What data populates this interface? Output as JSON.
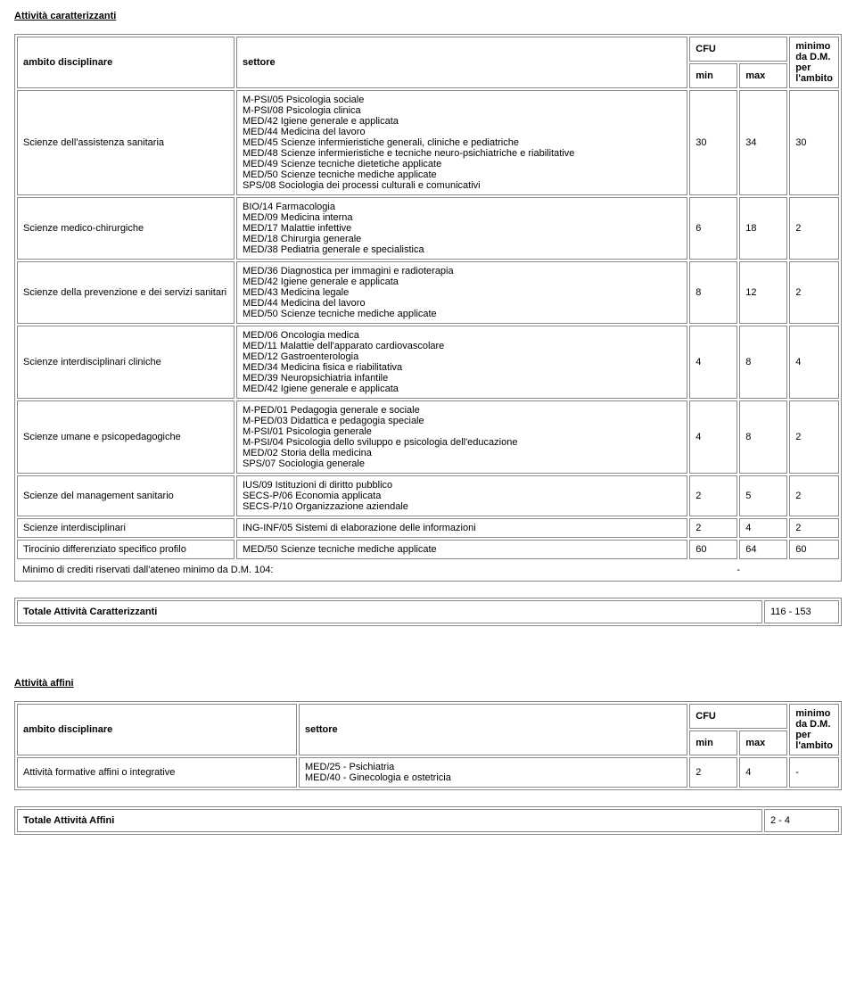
{
  "sections": {
    "caratterizzanti": {
      "title": "Attività caratterizzanti",
      "headers": {
        "ambito": "ambito disciplinare",
        "settore": "settore",
        "cfu": "CFU",
        "min": "min",
        "max": "max",
        "minimo": "minimo da D.M. per l'ambito"
      },
      "rows": [
        {
          "ambito": "Scienze dell'assistenza sanitaria",
          "settore": "M-PSI/05 Psicologia sociale\nM-PSI/08 Psicologia clinica\nMED/42 Igiene generale e applicata\nMED/44 Medicina del lavoro\nMED/45 Scienze infermieristiche generali, cliniche e pediatriche\nMED/48 Scienze infermieristiche e tecniche neuro-psichiatriche e riabilitative\nMED/49 Scienze tecniche dietetiche applicate\nMED/50 Scienze tecniche mediche applicate\nSPS/08 Sociologia dei processi culturali e comunicativi",
          "min": "30",
          "max": "34",
          "dm": "30"
        },
        {
          "ambito": "Scienze medico-chirurgiche",
          "settore": "BIO/14 Farmacologia\nMED/09 Medicina interna\nMED/17 Malattie infettive\nMED/18 Chirurgia generale\nMED/38 Pediatria generale e specialistica",
          "min": "6",
          "max": "18",
          "dm": "2"
        },
        {
          "ambito": "Scienze della prevenzione e dei servizi sanitari",
          "settore": "MED/36 Diagnostica per immagini e radioterapia\nMED/42 Igiene generale e applicata\nMED/43 Medicina legale\nMED/44 Medicina del lavoro\nMED/50 Scienze tecniche mediche applicate",
          "min": "8",
          "max": "12",
          "dm": "2"
        },
        {
          "ambito": "Scienze interdisciplinari cliniche",
          "settore": "MED/06 Oncologia medica\nMED/11 Malattie dell'apparato cardiovascolare\nMED/12 Gastroenterologia\nMED/34 Medicina fisica e riabilitativa\nMED/39 Neuropsichiatria infantile\nMED/42 Igiene generale e applicata",
          "min": "4",
          "max": "8",
          "dm": "4"
        },
        {
          "ambito": "Scienze umane e psicopedagogiche",
          "settore": "M-PED/01 Pedagogia generale e sociale\nM-PED/03 Didattica e pedagogia speciale\nM-PSI/01 Psicologia generale\nM-PSI/04 Psicologia dello sviluppo e psicologia dell'educazione\nMED/02 Storia della medicina\nSPS/07 Sociologia generale",
          "min": "4",
          "max": "8",
          "dm": "2"
        },
        {
          "ambito": "Scienze del management sanitario",
          "settore": "IUS/09 Istituzioni di diritto pubblico\nSECS-P/06 Economia applicata\nSECS-P/10 Organizzazione aziendale",
          "min": "2",
          "max": "5",
          "dm": "2"
        },
        {
          "ambito": "Scienze interdisciplinari",
          "settore": "ING-INF/05 Sistemi di elaborazione delle informazioni",
          "min": "2",
          "max": "4",
          "dm": "2"
        },
        {
          "ambito": "Tirocinio differenziato specifico profilo",
          "settore": "MED/50 Scienze tecniche mediche applicate",
          "min": "60",
          "max": "64",
          "dm": "60"
        }
      ],
      "footer_label": "Minimo di crediti riservati dall'ateneo minimo da D.M. 104:",
      "footer_val": "-",
      "total_label": "Totale Attività Caratterizzanti",
      "total_val": "116 - 153"
    },
    "affini": {
      "title": "Attività affini",
      "headers": {
        "ambito": "ambito disciplinare",
        "settore": "settore",
        "cfu": "CFU",
        "min": "min",
        "max": "max",
        "minimo": "minimo da D.M. per l'ambito"
      },
      "rows": [
        {
          "ambito": "Attività formative affini o integrative",
          "settore": "MED/25 - Psichiatria\nMED/40 - Ginecologia e ostetricia",
          "min": "2",
          "max": "4",
          "dm": "-"
        }
      ],
      "total_label": "Totale Attività Affini",
      "total_val": "2 - 4"
    }
  }
}
